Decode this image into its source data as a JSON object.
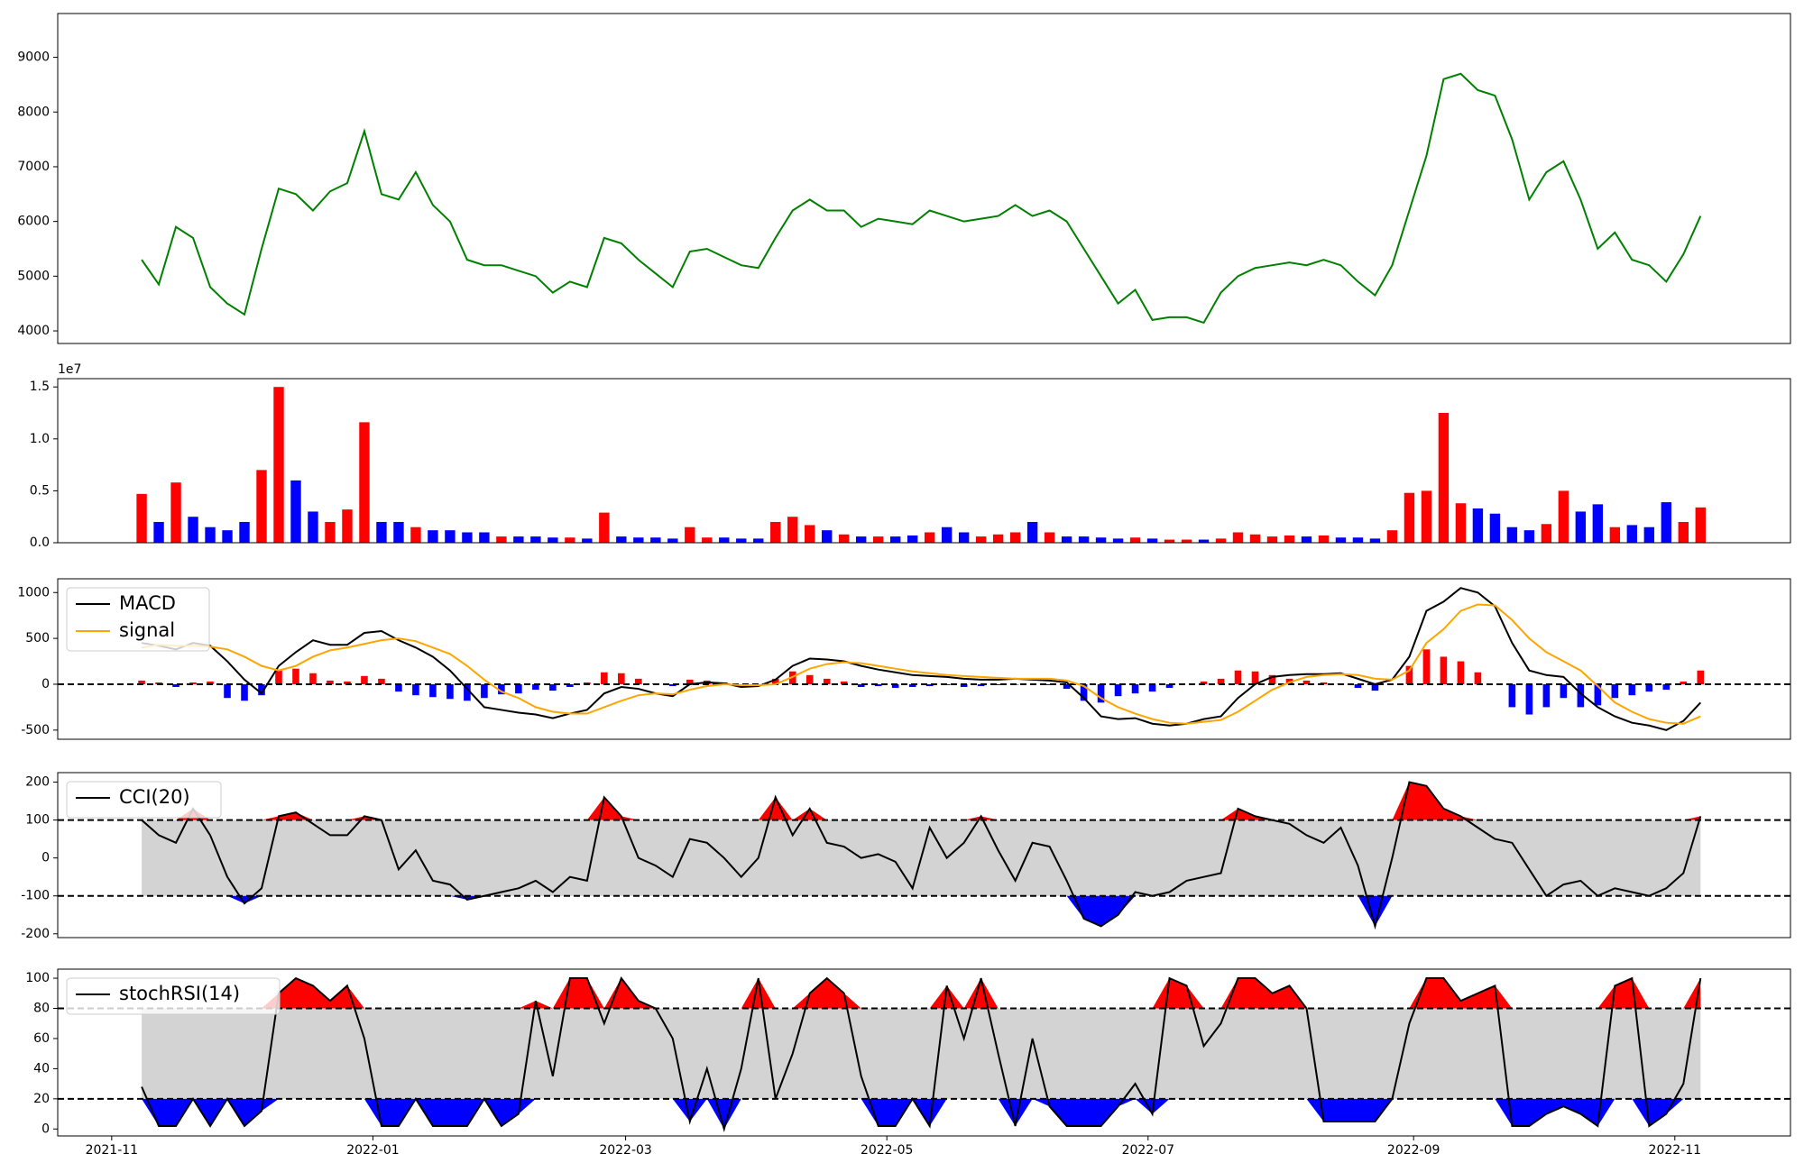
{
  "chart_data": [
    {
      "type": "line",
      "color": "#008000",
      "xlim": [
        -4.9,
        96.25
      ],
      "ylim": [
        3770,
        9800
      ],
      "yticks": [
        4000,
        5000,
        6000,
        7000,
        8000,
        9000
      ],
      "values": [
        5300,
        4850,
        5900,
        5700,
        4800,
        4500,
        4300,
        5500,
        6600,
        6500,
        6200,
        6550,
        6700,
        7650,
        6500,
        6400,
        6900,
        6300,
        6000,
        5300,
        5200,
        5200,
        5100,
        5000,
        4700,
        4900,
        4800,
        5700,
        5600,
        5300,
        5050,
        4800,
        5450,
        5500,
        5350,
        5200,
        5150,
        5700,
        6200,
        6400,
        6200,
        6200,
        5900,
        6050,
        6000,
        5950,
        6200,
        6100,
        6000,
        6050,
        6100,
        6300,
        6100,
        6200,
        6000,
        5500,
        5000,
        4500,
        4750,
        4200,
        4250,
        4250,
        4150,
        4700,
        5000,
        5150,
        5200,
        5250,
        5200,
        5300,
        5200,
        4900,
        4650,
        5200,
        6200,
        7200,
        8600,
        8700,
        8400,
        8300,
        7500,
        6400,
        6900,
        7100,
        6400,
        5500,
        5800,
        5300,
        5200,
        4900,
        5400,
        6100
      ]
    },
    {
      "type": "bar",
      "up_color": "#ff0000",
      "down_color": "#0000ff",
      "y_offset_label": "1e7",
      "xlim": [
        -4.9,
        96.25
      ],
      "ylim": [
        0,
        1.58
      ],
      "yticks": [
        {
          "value": 0,
          "label": "0.0"
        },
        0.5,
        {
          "value": 1,
          "label": "1.0"
        },
        1.5
      ],
      "values": [
        0.47,
        0.2,
        0.58,
        0.25,
        0.15,
        0.12,
        0.2,
        0.7,
        1.5,
        0.6,
        0.3,
        0.2,
        0.32,
        1.16,
        0.2,
        0.2,
        0.15,
        0.12,
        0.12,
        0.1,
        0.1,
        0.06,
        0.06,
        0.06,
        0.05,
        0.05,
        0.04,
        0.29,
        0.06,
        0.05,
        0.05,
        0.04,
        0.15,
        0.05,
        0.05,
        0.04,
        0.04,
        0.2,
        0.25,
        0.17,
        0.12,
        0.08,
        0.06,
        0.06,
        0.06,
        0.07,
        0.1,
        0.15,
        0.1,
        0.06,
        0.08,
        0.1,
        0.2,
        0.1,
        0.06,
        0.06,
        0.05,
        0.04,
        0.05,
        0.04,
        0.03,
        0.03,
        0.03,
        0.04,
        0.1,
        0.08,
        0.06,
        0.07,
        0.06,
        0.07,
        0.05,
        0.05,
        0.04,
        0.12,
        0.48,
        0.5,
        1.25,
        0.38,
        0.33,
        0.28,
        0.15,
        0.12,
        0.18,
        0.5,
        0.3,
        0.37,
        0.15,
        0.17,
        0.15,
        0.39,
        0.2,
        0.34
      ]
    },
    {
      "type": "macd",
      "up_color": "#ff0000",
      "down_color": "#0000ff",
      "hline": 0,
      "xlim": [
        -4.9,
        96.25
      ],
      "ylim": [
        -600,
        1150
      ],
      "yticks": [
        -500,
        0,
        500,
        1000
      ],
      "series": [
        {
          "name": "MACD",
          "color": "#000000",
          "values": [
            450,
            420,
            380,
            450,
            420,
            250,
            50,
            -100,
            200,
            350,
            480,
            430,
            430,
            560,
            580,
            480,
            400,
            300,
            150,
            -50,
            -250,
            -280,
            -310,
            -330,
            -370,
            -320,
            -280,
            -100,
            -30,
            -50,
            -100,
            -130,
            0,
            20,
            10,
            -30,
            -20,
            50,
            200,
            280,
            270,
            250,
            200,
            160,
            130,
            100,
            90,
            80,
            60,
            50,
            50,
            60,
            50,
            40,
            20,
            -150,
            -350,
            -380,
            -370,
            -430,
            -450,
            -430,
            -380,
            -350,
            -150,
            0,
            80,
            100,
            110,
            110,
            120,
            60,
            0,
            50,
            300,
            800,
            900,
            1050,
            1000,
            850,
            450,
            150,
            100,
            80,
            -100,
            -250,
            -350,
            -420,
            -450,
            -500,
            -400,
            -200
          ]
        },
        {
          "name": "signal",
          "color": "#ffa500",
          "values": [
            400,
            430,
            420,
            420,
            410,
            380,
            300,
            200,
            150,
            200,
            300,
            370,
            400,
            440,
            480,
            500,
            470,
            400,
            330,
            200,
            50,
            -80,
            -150,
            -250,
            -300,
            -320,
            -320,
            -250,
            -180,
            -120,
            -100,
            -110,
            -60,
            -20,
            0,
            -10,
            -10,
            0,
            80,
            170,
            220,
            240,
            230,
            200,
            170,
            140,
            120,
            100,
            90,
            80,
            70,
            60,
            60,
            60,
            40,
            -20,
            -150,
            -250,
            -320,
            -380,
            -420,
            -430,
            -410,
            -390,
            -300,
            -180,
            -60,
            20,
            80,
            100,
            110,
            100,
            60,
            50,
            150,
            450,
            600,
            800,
            870,
            860,
            700,
            500,
            350,
            250,
            150,
            -20,
            -200,
            -300,
            -380,
            -420,
            -430,
            -350
          ]
        }
      ],
      "histogram": [
        40,
        20,
        -30,
        20,
        30,
        -150,
        -180,
        -120,
        160,
        170,
        120,
        40,
        30,
        90,
        60,
        -80,
        -120,
        -140,
        -160,
        -180,
        -150,
        -110,
        -100,
        -60,
        -70,
        -30,
        20,
        130,
        120,
        60,
        10,
        -20,
        50,
        40,
        20,
        -10,
        0,
        60,
        140,
        100,
        60,
        30,
        -30,
        -20,
        -40,
        -30,
        -20,
        -10,
        -30,
        -20,
        -10,
        -5,
        0,
        -10,
        -50,
        -180,
        -200,
        -130,
        -100,
        -80,
        -40,
        0,
        30,
        60,
        150,
        140,
        100,
        60,
        40,
        20,
        10,
        -40,
        -70,
        0,
        200,
        380,
        300,
        250,
        130,
        0,
        -250,
        -330,
        -250,
        -150,
        -250,
        -230,
        -150,
        -120,
        -80,
        -60,
        30,
        150
      ]
    },
    {
      "type": "band",
      "band_color": "#d3d3d3",
      "upper_fill": "#ff0000",
      "lower_fill": "#0000ff",
      "bands": [
        -100,
        100
      ],
      "xlim": [
        -4.9,
        96.25
      ],
      "ylim": [
        -210,
        225
      ],
      "yticks": [
        -200,
        -100,
        0,
        100,
        200
      ],
      "series": [
        {
          "name": "CCI(20)",
          "color": "#000000",
          "values": [
            100,
            60,
            40,
            130,
            60,
            -50,
            -120,
            -80,
            110,
            120,
            90,
            60,
            60,
            110,
            100,
            -30,
            20,
            -60,
            -70,
            -110,
            -100,
            -90,
            -80,
            -60,
            -90,
            -50,
            -60,
            160,
            110,
            0,
            -20,
            -50,
            50,
            40,
            0,
            -50,
            0,
            160,
            60,
            130,
            40,
            30,
            0,
            10,
            -10,
            -80,
            80,
            0,
            40,
            110,
            20,
            -60,
            40,
            30,
            -60,
            -160,
            -180,
            -150,
            -90,
            -100,
            -90,
            -60,
            -50,
            -40,
            130,
            110,
            100,
            90,
            60,
            40,
            80,
            -20,
            -180,
            0,
            200,
            190,
            130,
            110,
            80,
            50,
            40,
            -30,
            -100,
            -70,
            -60,
            -100,
            -80,
            -90,
            -100,
            -80,
            -40,
            110
          ]
        }
      ]
    },
    {
      "type": "band",
      "band_color": "#d3d3d3",
      "upper_fill": "#ff0000",
      "lower_fill": "#0000ff",
      "bands": [
        20,
        80
      ],
      "xlim": [
        -4.9,
        96.25
      ],
      "ylim": [
        -4.6,
        106
      ],
      "yticks": [
        0,
        20,
        40,
        60,
        80,
        100
      ],
      "xticks": [
        {
          "value": -1.75,
          "label": "2021-11"
        },
        {
          "value": 13.5,
          "label": "2022-01"
        },
        {
          "value": 28.25,
          "label": "2022-03"
        },
        {
          "value": 43.5,
          "label": "2022-05"
        },
        {
          "value": 58.75,
          "label": "2022-07"
        },
        {
          "value": 74.25,
          "label": "2022-09"
        },
        {
          "value": 89.5,
          "label": "2022-11"
        }
      ],
      "series": [
        {
          "name": "stochRSI(14)",
          "color": "#000000",
          "values": [
            28,
            2,
            2,
            20,
            2,
            20,
            2,
            12,
            90,
            100,
            95,
            85,
            95,
            60,
            2,
            2,
            20,
            2,
            2,
            2,
            20,
            2,
            10,
            85,
            35,
            100,
            100,
            70,
            100,
            85,
            80,
            60,
            5,
            40,
            0,
            40,
            100,
            20,
            50,
            90,
            100,
            90,
            35,
            2,
            2,
            20,
            2,
            95,
            60,
            100,
            50,
            2,
            60,
            15,
            2,
            2,
            2,
            15,
            30,
            10,
            100,
            95,
            55,
            70,
            100,
            100,
            90,
            95,
            80,
            5,
            5,
            5,
            5,
            20,
            70,
            100,
            100,
            85,
            90,
            95,
            2,
            2,
            10,
            15,
            10,
            2,
            95,
            100,
            2,
            10,
            30,
            100
          ]
        }
      ]
    }
  ]
}
